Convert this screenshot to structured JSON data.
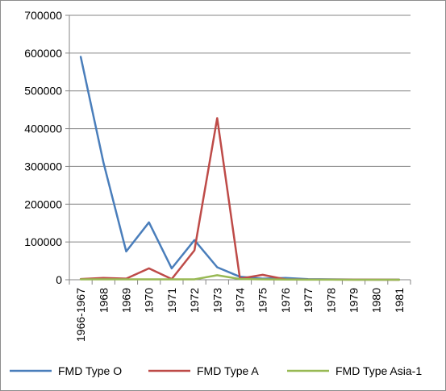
{
  "chart_data": {
    "type": "line",
    "title": "",
    "xlabel": "",
    "ylabel": "",
    "categories": [
      "1966-1967",
      "1968",
      "1969",
      "1970",
      "1971",
      "1972",
      "1973",
      "1974",
      "1975",
      "1976",
      "1977",
      "1978",
      "1979",
      "1980",
      "1981"
    ],
    "ylim": [
      0,
      700000
    ],
    "yticks": [
      0,
      100000,
      200000,
      300000,
      400000,
      500000,
      600000,
      700000
    ],
    "ytick_labels": [
      "0",
      "100000",
      "200000",
      "300000",
      "400000",
      "500000",
      "600000",
      "700000"
    ],
    "grid": "horizontal",
    "legend_position": "bottom",
    "series": [
      {
        "name": "FMD Type O",
        "color": "#4a7ebb",
        "values": [
          590000,
          310000,
          75000,
          152000,
          30000,
          105000,
          33000,
          8000,
          3000,
          5000,
          1500,
          1000,
          500,
          300,
          200
        ]
      },
      {
        "name": "FMD Type A",
        "color": "#be4b48",
        "values": [
          2000,
          5000,
          3000,
          30000,
          2000,
          78000,
          428000,
          3000,
          13000,
          1000,
          500,
          500,
          300,
          200,
          100
        ]
      },
      {
        "name": "FMD Type Asia-1",
        "color": "#98b954",
        "values": [
          1000,
          1000,
          1000,
          1000,
          1000,
          1000,
          12000,
          2000,
          1000,
          500,
          300,
          200,
          100,
          100,
          100
        ]
      }
    ]
  }
}
